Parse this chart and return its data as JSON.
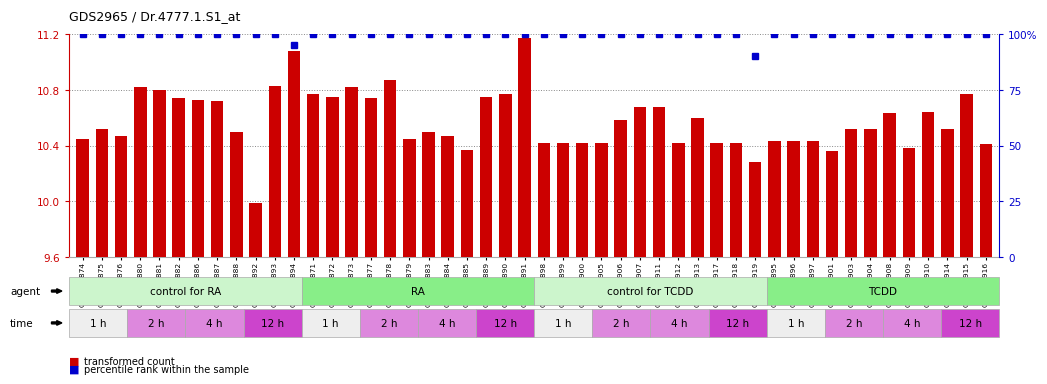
{
  "title": "GDS2965 / Dr.4777.1.S1_at",
  "bar_color": "#cc0000",
  "dot_color": "#0000cc",
  "ylim_left": [
    9.6,
    11.2
  ],
  "ylim_right": [
    0,
    100
  ],
  "yticks_left": [
    9.6,
    10.0,
    10.4,
    10.8,
    11.2
  ],
  "yticks_right": [
    0,
    25,
    50,
    75,
    100
  ],
  "samples": [
    "GSM228874",
    "GSM228875",
    "GSM228876",
    "GSM228880",
    "GSM228881",
    "GSM228882",
    "GSM228886",
    "GSM228887",
    "GSM228888",
    "GSM228892",
    "GSM228893",
    "GSM228894",
    "GSM228871",
    "GSM228872",
    "GSM228873",
    "GSM228877",
    "GSM228878",
    "GSM228879",
    "GSM228883",
    "GSM228884",
    "GSM228885",
    "GSM228889",
    "GSM228890",
    "GSM228891",
    "GSM228898",
    "GSM228899",
    "GSM228900",
    "GSM228905",
    "GSM228906",
    "GSM228907",
    "GSM228911",
    "GSM228912",
    "GSM228913",
    "GSM228917",
    "GSM228918",
    "GSM228919",
    "GSM228895",
    "GSM228896",
    "GSM228897",
    "GSM228901",
    "GSM228903",
    "GSM228904",
    "GSM228908",
    "GSM228909",
    "GSM228910",
    "GSM228914",
    "GSM228915",
    "GSM228916"
  ],
  "bar_values": [
    10.45,
    10.52,
    10.47,
    10.82,
    10.8,
    10.74,
    10.73,
    10.72,
    10.5,
    9.99,
    10.83,
    11.08,
    10.77,
    10.75,
    10.82,
    10.74,
    10.87,
    10.45,
    10.5,
    10.47,
    10.37,
    10.75,
    10.77,
    11.17,
    10.42,
    10.42,
    10.42,
    10.42,
    10.58,
    10.68,
    10.68,
    10.42,
    10.6,
    10.42,
    10.42,
    10.28,
    10.43,
    10.43,
    10.43,
    10.36,
    10.52,
    10.52,
    10.63,
    10.38,
    10.64,
    10.52,
    10.77,
    10.41
  ],
  "percentile_values": [
    100,
    100,
    100,
    100,
    100,
    100,
    100,
    100,
    100,
    100,
    100,
    95,
    100,
    100,
    100,
    100,
    100,
    100,
    100,
    100,
    100,
    100,
    100,
    100,
    100,
    100,
    100,
    100,
    100,
    100,
    100,
    100,
    100,
    100,
    100,
    90,
    100,
    100,
    100,
    100,
    100,
    100,
    100,
    100,
    100,
    100,
    100,
    100
  ],
  "groups": [
    {
      "label": "control for RA",
      "start": 0,
      "end": 11,
      "color": "#ccf5cc"
    },
    {
      "label": "RA",
      "start": 12,
      "end": 23,
      "color": "#88ee88"
    },
    {
      "label": "control for TCDD",
      "start": 24,
      "end": 35,
      "color": "#ccf5cc"
    },
    {
      "label": "TCDD",
      "start": 36,
      "end": 47,
      "color": "#88ee88"
    }
  ],
  "time_labels": [
    "1 h",
    "2 h",
    "4 h",
    "12 h"
  ],
  "time_colors": [
    "#eeeeee",
    "#dd88dd",
    "#dd88dd",
    "#cc44cc"
  ],
  "samples_per_time": 3,
  "legend_bar_label": "transformed count",
  "legend_dot_label": "percentile rank within the sample",
  "bg_color": "#ffffff",
  "grid_color": "#888888",
  "tick_color_left": "#cc0000",
  "tick_color_right": "#0000cc"
}
